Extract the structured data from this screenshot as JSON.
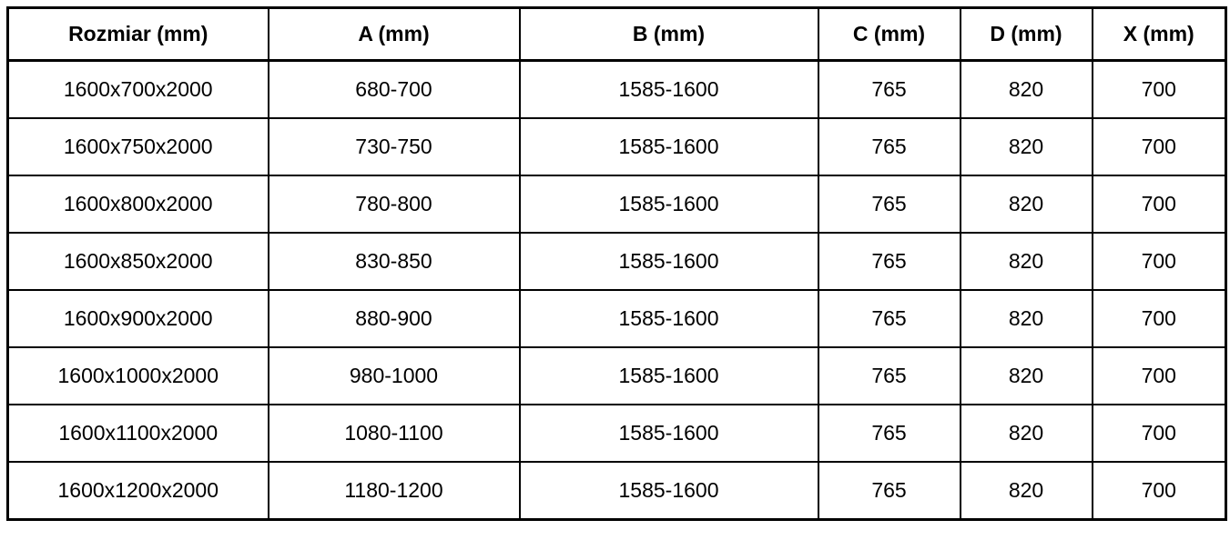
{
  "colors": {
    "background": "#ffffff",
    "border": "#000000",
    "text": "#000000"
  },
  "table": {
    "columns": [
      "Rozmiar (mm)",
      "A (mm)",
      "B (mm)",
      "C (mm)",
      "D (mm)",
      "X (mm)"
    ],
    "rows": [
      [
        "1600x700x2000",
        "680-700",
        "1585-1600",
        "765",
        "820",
        "700"
      ],
      [
        "1600x750x2000",
        "730-750",
        "1585-1600",
        "765",
        "820",
        "700"
      ],
      [
        "1600x800x2000",
        "780-800",
        "1585-1600",
        "765",
        "820",
        "700"
      ],
      [
        "1600x850x2000",
        "830-850",
        "1585-1600",
        "765",
        "820",
        "700"
      ],
      [
        "1600x900x2000",
        "880-900",
        "1585-1600",
        "765",
        "820",
        "700"
      ],
      [
        "1600x1000x2000",
        "980-1000",
        "1585-1600",
        "765",
        "820",
        "700"
      ],
      [
        "1600x1100x2000",
        "1080-1100",
        "1585-1600",
        "765",
        "820",
        "700"
      ],
      [
        "1600x1200x2000",
        "1180-1200",
        "1585-1600",
        "765",
        "820",
        "700"
      ]
    ]
  }
}
